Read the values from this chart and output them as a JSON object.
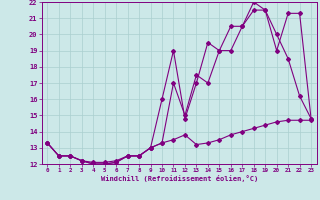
{
  "line1_x": [
    0,
    1,
    2,
    3,
    4,
    5,
    6,
    7,
    8,
    9,
    10,
    11,
    12,
    13,
    14,
    15,
    16,
    17,
    18,
    19,
    20,
    21,
    22,
    23
  ],
  "line1_y": [
    13.3,
    12.5,
    12.5,
    12.2,
    12.0,
    12.0,
    12.1,
    12.5,
    12.5,
    13.0,
    13.3,
    17.0,
    15.0,
    17.5,
    17.0,
    19.0,
    19.0,
    20.5,
    22.0,
    21.5,
    20.0,
    18.5,
    16.2,
    14.8
  ],
  "line2_x": [
    0,
    1,
    2,
    3,
    4,
    5,
    6,
    7,
    8,
    9,
    10,
    11,
    12,
    13,
    14,
    15,
    16,
    17,
    18,
    19,
    20,
    21,
    22,
    23
  ],
  "line2_y": [
    13.3,
    12.5,
    12.5,
    12.2,
    12.0,
    12.0,
    12.1,
    12.5,
    12.5,
    13.0,
    16.0,
    19.0,
    14.8,
    17.0,
    19.5,
    19.0,
    20.5,
    20.5,
    21.5,
    21.5,
    19.0,
    21.3,
    21.3,
    14.8
  ],
  "line3_x": [
    0,
    1,
    2,
    3,
    4,
    5,
    6,
    7,
    8,
    9,
    10,
    11,
    12,
    13,
    14,
    15,
    16,
    17,
    18,
    19,
    20,
    21,
    22,
    23
  ],
  "line3_y": [
    13.3,
    12.5,
    12.5,
    12.2,
    12.1,
    12.1,
    12.2,
    12.5,
    12.5,
    13.0,
    13.3,
    13.5,
    13.8,
    13.2,
    13.3,
    13.5,
    13.8,
    14.0,
    14.2,
    14.4,
    14.6,
    14.7,
    14.7,
    14.7
  ],
  "color": "#800080",
  "xlabel": "Windchill (Refroidissement éolien,°C)",
  "xlim": [
    -0.5,
    23.5
  ],
  "ylim": [
    12,
    22
  ],
  "yticks": [
    12,
    13,
    14,
    15,
    16,
    17,
    18,
    19,
    20,
    21,
    22
  ],
  "xticks": [
    0,
    1,
    2,
    3,
    4,
    5,
    6,
    7,
    8,
    9,
    10,
    11,
    12,
    13,
    14,
    15,
    16,
    17,
    18,
    19,
    20,
    21,
    22,
    23
  ],
  "background_color": "#cce8e8",
  "grid_color": "#aacfcf"
}
